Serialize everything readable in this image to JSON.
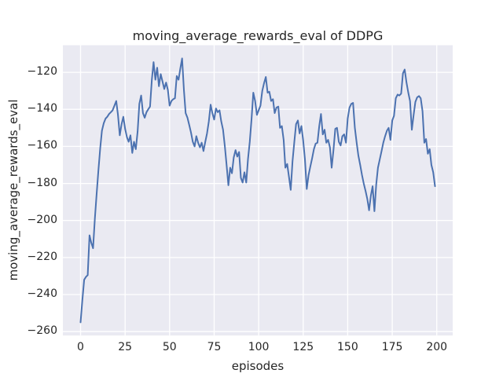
{
  "chart_data": {
    "type": "line",
    "title": "moving_average_rewards_eval of DDPG",
    "xlabel": "episodes",
    "ylabel": "moving_average_rewards_eval",
    "grid": true,
    "legend": "none",
    "x_start": 0,
    "x_step": 1,
    "x_ticks": [
      0,
      25,
      50,
      75,
      100,
      125,
      150,
      175,
      200
    ],
    "x_tick_labels": [
      "0",
      "25",
      "50",
      "75",
      "100",
      "125",
      "150",
      "175",
      "200"
    ],
    "y_ticks": [
      -120,
      -140,
      -160,
      -180,
      -200,
      -220,
      -240,
      -260
    ],
    "y_tick_labels": [
      "−120",
      "−140",
      "−160",
      "−180",
      "−200",
      "−220",
      "−240",
      "−260"
    ],
    "xlim": [
      -9.95,
      208.95
    ],
    "ylim": [
      -262.125,
      -105.375
    ],
    "colors": {
      "line": "#4c72b0",
      "axes_background": "#eaeaf2",
      "grid": "#ffffff",
      "text": "#262626",
      "figure_background": "#ffffff"
    },
    "series": [
      {
        "name": "moving_average_rewards_eval",
        "values": [
          -255,
          -243,
          -232,
          -230.5,
          -229.5,
          -208,
          -212,
          -215,
          -199,
          -186,
          -173,
          -161,
          -151.5,
          -147.5,
          -145,
          -144,
          -142.5,
          -141.5,
          -140.5,
          -138,
          -135.5,
          -143,
          -154,
          -148,
          -144,
          -150.5,
          -155,
          -157.5,
          -154,
          -163.5,
          -157.5,
          -161.5,
          -152,
          -137,
          -132.5,
          -142,
          -144.5,
          -141.5,
          -140,
          -138.5,
          -124,
          -114.5,
          -124,
          -117.5,
          -127.5,
          -121,
          -125,
          -129,
          -125.5,
          -129.5,
          -138,
          -135.5,
          -134.5,
          -134,
          -122,
          -124,
          -118,
          -112.5,
          -129.5,
          -142,
          -144.5,
          -148.5,
          -152.5,
          -157.5,
          -160,
          -154.5,
          -158,
          -160.5,
          -158,
          -162.5,
          -157.5,
          -153,
          -146.5,
          -137.5,
          -142,
          -145.5,
          -139.5,
          -141.5,
          -140.5,
          -146.5,
          -151,
          -160,
          -170,
          -181,
          -171.5,
          -174.5,
          -166,
          -162,
          -165.5,
          -163,
          -177,
          -179.5,
          -174,
          -179.5,
          -167,
          -157.5,
          -145,
          -131,
          -135.5,
          -143,
          -140.5,
          -138,
          -130,
          -126,
          -122.5,
          -131,
          -130.5,
          -135.5,
          -134.5,
          -142,
          -139,
          -138.5,
          -150,
          -149,
          -156.5,
          -171.5,
          -169.5,
          -176.5,
          -183.5,
          -168,
          -157.5,
          -148,
          -146,
          -153,
          -149,
          -157,
          -167,
          -183,
          -175.5,
          -171,
          -166.5,
          -161.5,
          -158.5,
          -158,
          -149,
          -142.5,
          -153.5,
          -151,
          -158,
          -156.5,
          -160.5,
          -171.5,
          -162,
          -150.5,
          -150,
          -157.5,
          -159.5,
          -154.5,
          -153.5,
          -158,
          -145,
          -139,
          -137,
          -136.5,
          -150,
          -158,
          -165,
          -170,
          -175.5,
          -180,
          -184,
          -188.5,
          -194.5,
          -186.5,
          -181.5,
          -195,
          -180.5,
          -171.5,
          -167,
          -162.5,
          -158,
          -154.5,
          -151.5,
          -150,
          -156.5,
          -146,
          -143.5,
          -134,
          -132,
          -132.5,
          -131.5,
          -120.5,
          -118.5,
          -125.5,
          -131,
          -135.5,
          -151,
          -143,
          -136,
          -133.5,
          -132.8,
          -134,
          -141,
          -158,
          -156,
          -164,
          -161.5,
          -170,
          -174,
          -181.5
        ]
      }
    ]
  }
}
